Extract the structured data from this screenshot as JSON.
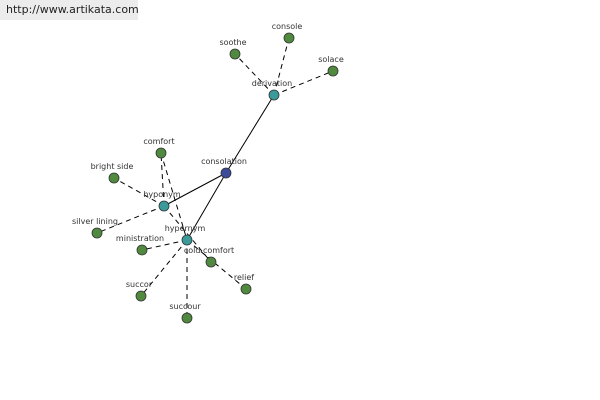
{
  "header": {
    "url": "http://www.artikata.com"
  },
  "nodes": [
    {
      "label": "consolation"
    },
    {
      "label": "derivation"
    },
    {
      "label": "soothe"
    },
    {
      "label": "console"
    },
    {
      "label": "solace"
    },
    {
      "label": "hyponym"
    },
    {
      "label": "comfort"
    },
    {
      "label": "bright side"
    },
    {
      "label": "silver lining"
    },
    {
      "label": "hypernym"
    },
    {
      "label": "ministration"
    },
    {
      "label": "cold comfort"
    },
    {
      "label": "relief"
    },
    {
      "label": "succor"
    },
    {
      "label": "succour"
    }
  ]
}
